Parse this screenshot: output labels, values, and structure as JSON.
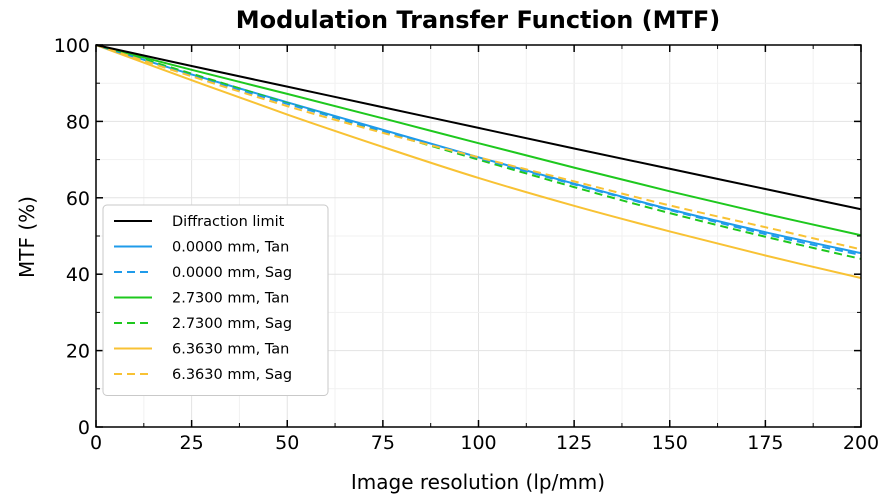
{
  "chart_data": {
    "type": "line",
    "title": "Modulation Transfer Function (MTF)",
    "xlabel": "Image resolution (lp/mm)",
    "ylabel": "MTF (%)",
    "xlim": [
      0,
      200
    ],
    "ylim": [
      0,
      100
    ],
    "xticks": [
      0,
      25,
      50,
      75,
      100,
      125,
      150,
      175,
      200
    ],
    "yticks": [
      0,
      20,
      40,
      60,
      80,
      100
    ],
    "grid": true,
    "legend_position": "bottom-left",
    "x": [
      0,
      25,
      50,
      75,
      100,
      125,
      150,
      175,
      200
    ],
    "series": [
      {
        "name": "Diffraction limit",
        "color": "#000000",
        "dash": "solid",
        "values": [
          100,
          94.5,
          89.1,
          83.7,
          78.3,
          72.9,
          67.6,
          62.3,
          57.0
        ]
      },
      {
        "name": "0.0000 mm, Tan",
        "color": "#1f9bea",
        "dash": "solid",
        "values": [
          100,
          92.3,
          85.0,
          77.8,
          70.6,
          63.7,
          57.0,
          51.0,
          45.5
        ]
      },
      {
        "name": "0.0000 mm, Sag",
        "color": "#1f9bea",
        "dash": "dashed",
        "values": [
          100,
          92.0,
          84.6,
          77.5,
          70.4,
          63.5,
          56.8,
          50.5,
          45.0
        ]
      },
      {
        "name": "2.7300 mm, Tan",
        "color": "#1ec81e",
        "dash": "solid",
        "values": [
          100,
          93.5,
          87.2,
          80.8,
          74.3,
          67.9,
          61.7,
          55.8,
          50.2
        ]
      },
      {
        "name": "2.7300 mm, Sag",
        "color": "#1ec81e",
        "dash": "dashed",
        "values": [
          100,
          92.5,
          84.8,
          77.3,
          70.0,
          62.8,
          56.0,
          49.8,
          44.0
        ]
      },
      {
        "name": "6.3630 mm, Tan",
        "color": "#f8c234",
        "dash": "solid",
        "values": [
          100,
          90.8,
          81.8,
          73.3,
          65.2,
          57.9,
          51.2,
          44.9,
          39.0
        ]
      },
      {
        "name": "6.3630 mm, Sag",
        "color": "#f8c234",
        "dash": "dashed",
        "values": [
          100,
          91.8,
          84.0,
          77.0,
          70.6,
          64.3,
          58.0,
          52.3,
          46.5
        ]
      }
    ]
  }
}
